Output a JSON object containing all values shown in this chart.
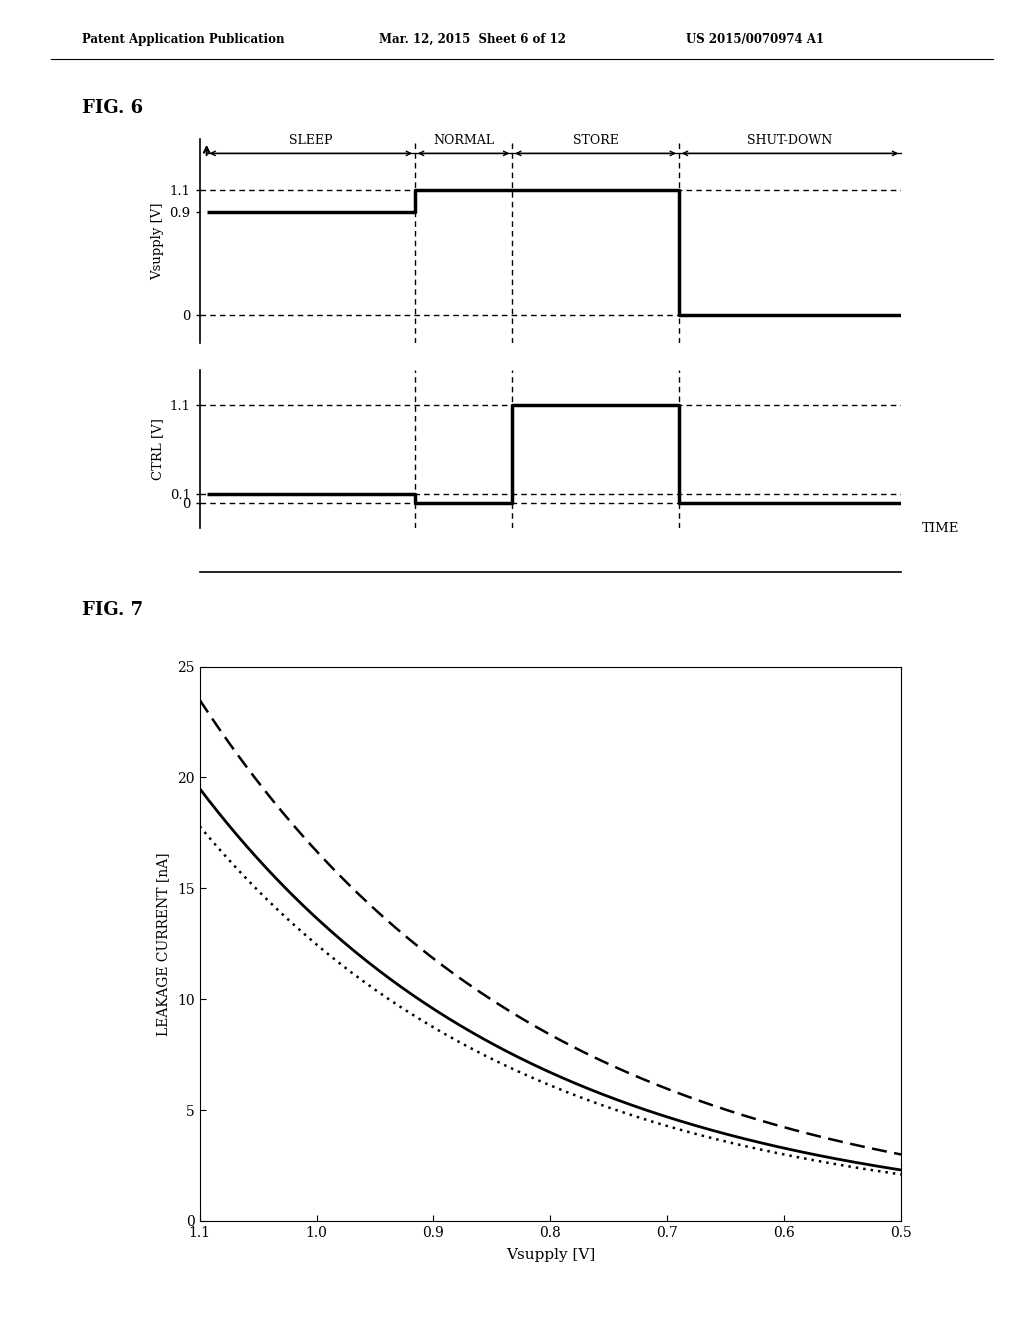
{
  "header_left": "Patent Application Publication",
  "header_mid": "Mar. 12, 2015  Sheet 6 of 12",
  "header_right": "US 2015/0070974 A1",
  "fig6_label": "FIG. 6",
  "fig7_label": "FIG. 7",
  "phase_labels": [
    "SLEEP",
    "NORMAL",
    "STORE",
    "SHUT-DOWN"
  ],
  "phase_boundaries": [
    0.0,
    0.3,
    0.44,
    0.68,
    1.0
  ],
  "vsupply_ylabel": "Vsupply [V]",
  "ctrl_ylabel": "CTRL [V]",
  "time_xlabel": "TIME",
  "fig7_xlabel": "Vsupply [V]",
  "fig7_ylabel": "LEAKAGE CURRENT [nA]",
  "fig7_xlim": [
    1.1,
    0.5
  ],
  "fig7_ylim": [
    0,
    25
  ],
  "fig7_xticks": [
    1.1,
    1.0,
    0.9,
    0.8,
    0.7,
    0.6,
    0.5
  ],
  "fig7_yticks": [
    0,
    5,
    10,
    15,
    20,
    25
  ],
  "background_color": "#ffffff",
  "curve_solid_at_11": 19.5,
  "curve_solid_at_05": 2.3,
  "curve_upper_at_11": 23.5,
  "curve_upper_at_05": 3.0,
  "curve_lower_at_11": 17.8,
  "curve_lower_at_05": 2.1
}
